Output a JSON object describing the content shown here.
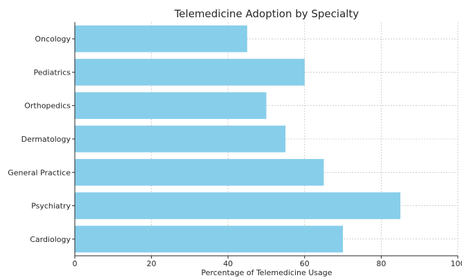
{
  "chart_data": {
    "type": "bar",
    "orientation": "horizontal",
    "title": "Telemedicine Adoption by Specialty",
    "xlabel": "Percentage of Telemedicine Usage",
    "ylabel": "",
    "categories": [
      "Cardiology",
      "Psychiatry",
      "General Practice",
      "Dermatology",
      "Orthopedics",
      "Pediatrics",
      "Oncology"
    ],
    "values": [
      70,
      85,
      65,
      55,
      50,
      60,
      45
    ],
    "xlim": [
      0,
      100
    ],
    "xticks": [
      0,
      20,
      40,
      60,
      80,
      100
    ],
    "grid": true,
    "bar_color": "#87CEEB"
  }
}
